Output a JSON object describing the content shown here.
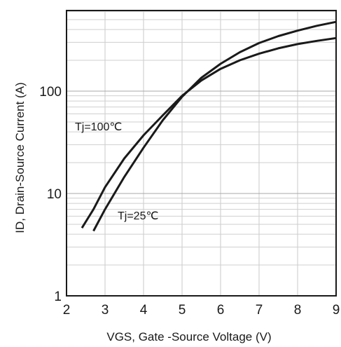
{
  "chart_data": {
    "type": "line",
    "xlabel": "VGS, Gate -Source Voltage (V)",
    "ylabel": "ID, Drain-Source Current (A)",
    "xlim": [
      2,
      9
    ],
    "ylim": [
      1,
      700
    ],
    "yscale": "log",
    "x_ticks": [
      "2",
      "3",
      "4",
      "5",
      "6",
      "7",
      "8",
      "9"
    ],
    "y_ticks": [
      "1",
      "10",
      "100"
    ],
    "grid": true,
    "annotations": [
      "Tj=100℃",
      "Tj=25℃"
    ],
    "series": [
      {
        "name": "Tj=100℃",
        "points": [
          [
            2.4,
            4.6
          ],
          [
            2.7,
            7.0
          ],
          [
            3.0,
            11.5
          ],
          [
            3.5,
            22
          ],
          [
            4.0,
            37
          ],
          [
            4.5,
            58
          ],
          [
            5.0,
            90
          ],
          [
            5.5,
            127
          ],
          [
            6.0,
            165
          ],
          [
            6.5,
            200
          ],
          [
            7.0,
            232
          ],
          [
            7.5,
            262
          ],
          [
            8.0,
            288
          ],
          [
            8.5,
            310
          ],
          [
            9.0,
            330
          ]
        ]
      },
      {
        "name": "Tj=25℃",
        "points": [
          [
            2.7,
            4.3
          ],
          [
            3.0,
            7.0
          ],
          [
            3.5,
            14.5
          ],
          [
            4.0,
            28
          ],
          [
            4.5,
            52
          ],
          [
            5.0,
            88
          ],
          [
            5.5,
            135
          ],
          [
            6.0,
            185
          ],
          [
            6.5,
            240
          ],
          [
            7.0,
            295
          ],
          [
            7.5,
            345
          ],
          [
            8.0,
            390
          ],
          [
            8.5,
            435
          ],
          [
            9.0,
            475
          ]
        ]
      }
    ]
  }
}
